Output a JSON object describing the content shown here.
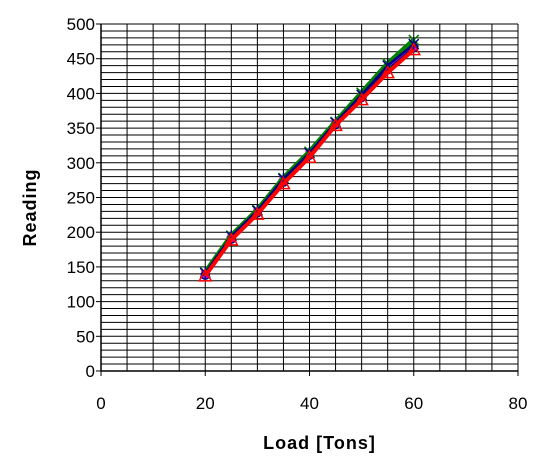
{
  "chart_data": {
    "type": "line",
    "title": "",
    "xlabel": "Load [Tons]",
    "ylabel": "Reading",
    "xlim": [
      0,
      80
    ],
    "ylim": [
      0,
      500
    ],
    "xticks": [
      0,
      20,
      40,
      60,
      80
    ],
    "yticks": [
      0,
      50,
      100,
      150,
      200,
      250,
      300,
      350,
      400,
      450,
      500
    ],
    "grid": true,
    "legend": "none",
    "x": [
      20,
      25,
      30,
      35,
      40,
      45,
      50,
      55,
      60
    ],
    "series": [
      {
        "marker": "diamond",
        "color": "#000080",
        "values": [
          140,
          193,
          230,
          276,
          310,
          357,
          396,
          438,
          468
        ]
      },
      {
        "marker": "square",
        "color": "#ff00ff",
        "values": [
          139,
          191,
          229,
          274,
          312,
          356,
          395,
          436,
          467
        ]
      },
      {
        "marker": "circle",
        "color": "#000080",
        "values": [
          138,
          190,
          228,
          272,
          311,
          355,
          394,
          434,
          466
        ]
      },
      {
        "marker": "x",
        "color": "#008000",
        "values": [
          142,
          195,
          232,
          278,
          316,
          359,
          401,
          443,
          477
        ]
      },
      {
        "marker": "star",
        "color": "#000080",
        "values": [
          141,
          194,
          231,
          277,
          314,
          358,
          398,
          440,
          471
        ]
      },
      {
        "marker": "triangle",
        "color": "#ff0000",
        "values": [
          137,
          189,
          226,
          270,
          308,
          354,
          391,
          430,
          463
        ]
      }
    ]
  }
}
